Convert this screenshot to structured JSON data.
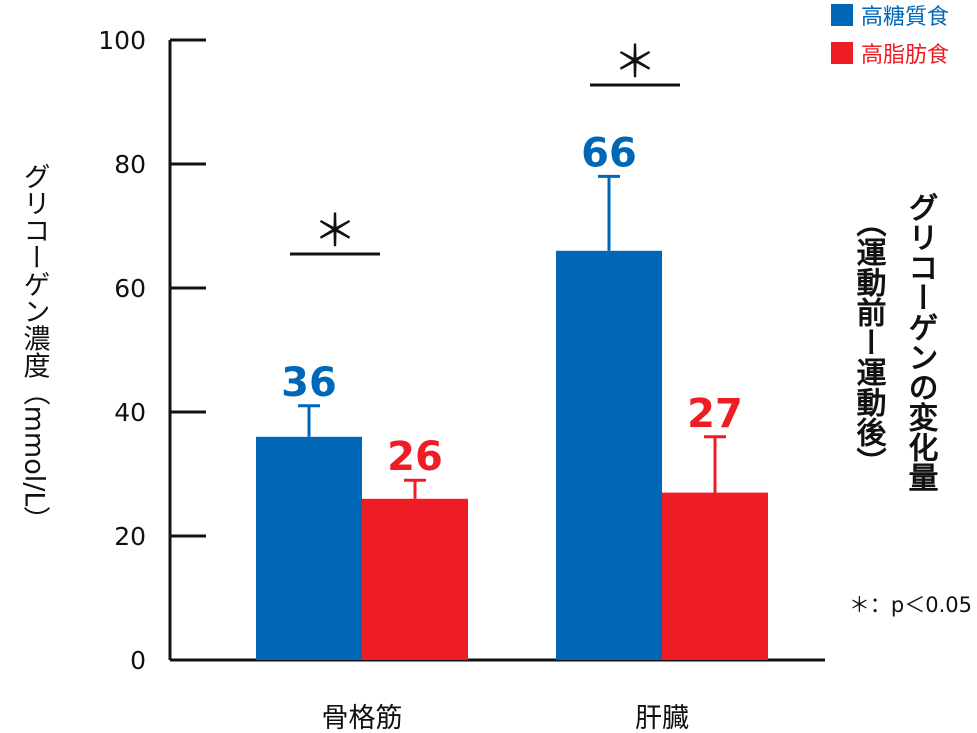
{
  "chart_data": {
    "type": "bar",
    "categories": [
      "骨格筋",
      "肝臓"
    ],
    "series": [
      {
        "name": "高糖質食",
        "color": "#0067B6",
        "values": [
          36,
          66
        ],
        "errors": [
          5,
          12
        ]
      },
      {
        "name": "高脂肪食",
        "color": "#EE1C25",
        "values": [
          26,
          27
        ],
        "errors": [
          3,
          9
        ]
      }
    ],
    "value_labels": [
      [
        "36",
        "66"
      ],
      [
        "26",
        "27"
      ]
    ],
    "ylabel": "グリコーゲン濃度（mmol/L）",
    "ylim": [
      0,
      100
    ],
    "yticks": [
      "0",
      "20",
      "40",
      "60",
      "80",
      "100"
    ],
    "right_label_main": "グリコーゲンの変化量",
    "right_label_sub": "（運動前ー運動後）",
    "significance": [
      {
        "category": "骨格筋",
        "symbol": "＊"
      },
      {
        "category": "肝臓",
        "symbol": "＊"
      }
    ],
    "significance_note": "＊：p＜0.05",
    "legend_position": "top-right",
    "grid": false
  }
}
